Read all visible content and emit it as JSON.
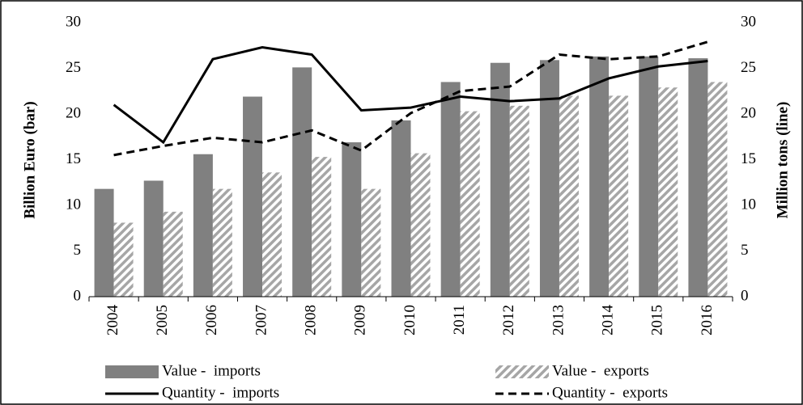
{
  "chart_data": {
    "type": "bar",
    "y_label": "Billion Euro (bar)",
    "y2_label": "Million tons (line)",
    "categories": [
      "2004",
      "2005",
      "2006",
      "2007",
      "2008",
      "2009",
      "2010",
      "2011",
      "2012",
      "2013",
      "2014",
      "2015",
      "2016"
    ],
    "ylim": [
      0,
      30
    ],
    "yticks": [
      0,
      5,
      10,
      15,
      20,
      25,
      30
    ],
    "y2lim": [
      0,
      30
    ],
    "y2ticks": [
      0,
      5,
      10,
      15,
      20,
      25,
      30
    ],
    "grid": false,
    "legend": "bottom",
    "series": [
      {
        "name": "Value -  imports",
        "type": "bar",
        "color": "#808080",
        "pattern": "solid",
        "values": [
          11.8,
          12.7,
          15.6,
          21.9,
          25.1,
          16.9,
          19.3,
          23.5,
          25.6,
          25.9,
          26.3,
          26.3,
          26.1
        ]
      },
      {
        "name": "Value -  exports",
        "type": "bar",
        "color": "#a6a6a6",
        "pattern": "hatch",
        "values": [
          8.1,
          9.3,
          11.8,
          13.6,
          15.3,
          11.8,
          15.7,
          20.3,
          20.9,
          22.0,
          22.0,
          22.9,
          23.5
        ]
      },
      {
        "name": "Quantity -  imports",
        "type": "line",
        "axis": "y2",
        "color": "#000000",
        "dash": false,
        "values": [
          21.0,
          16.9,
          26.0,
          27.3,
          26.5,
          20.4,
          20.7,
          21.9,
          21.4,
          21.7,
          23.9,
          25.2,
          25.8
        ]
      },
      {
        "name": "Quantity -  exports",
        "type": "line",
        "axis": "y2",
        "color": "#000000",
        "dash": true,
        "values": [
          15.5,
          16.5,
          17.4,
          16.9,
          18.2,
          16.0,
          20.1,
          22.5,
          23.0,
          26.5,
          26.0,
          26.3,
          27.9
        ]
      }
    ]
  }
}
